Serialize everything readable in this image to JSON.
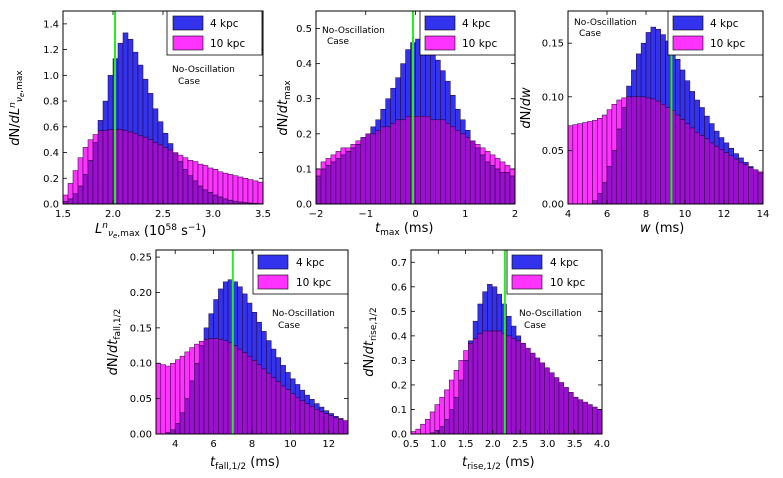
{
  "colors": {
    "kpc4": "#3333ee",
    "kpc10": "#ff33ff",
    "overlap": "#9911cc",
    "marker": "#22ee22"
  },
  "chart_data": [
    {
      "type": "bar",
      "id": "lmax",
      "title": "",
      "xlabel": "L^n_{ν_e,max} (10^58 s^-1)",
      "ylabel": "dN/dL^n_{ν_e,max}",
      "xlim": [
        1.5,
        3.5
      ],
      "ylim": [
        0,
        1.5
      ],
      "xticks": [
        "1.5",
        "2.0",
        "2.5",
        "3.0",
        "3.5"
      ],
      "xtick_values": [
        1.5,
        2.0,
        2.5,
        3.0,
        3.5
      ],
      "yticks": [
        "0.0",
        "0.2",
        "0.4",
        "0.6",
        "0.8",
        "1.0",
        "1.2",
        "1.4"
      ],
      "ytick_values": [
        0.0,
        0.2,
        0.4,
        0.6,
        0.8,
        1.0,
        1.2,
        1.4
      ],
      "marker_x": 2.02,
      "annotation": [
        "No-Oscillation",
        "Case"
      ],
      "legend": [
        "4 kpc",
        "10 kpc"
      ],
      "bin_start": 1.5,
      "bin_width": 0.05,
      "series": [
        {
          "name": "4 kpc",
          "values": [
            0.02,
            0.04,
            0.08,
            0.14,
            0.23,
            0.34,
            0.48,
            0.65,
            0.8,
            1.0,
            1.13,
            1.25,
            1.33,
            1.28,
            1.18,
            1.08,
            0.97,
            0.86,
            0.74,
            0.64,
            0.55,
            0.47,
            0.39,
            0.33,
            0.27,
            0.22,
            0.18,
            0.14,
            0.11,
            0.09,
            0.07,
            0.055,
            0.04,
            0.03,
            0.022,
            0.016,
            0.012,
            0.008,
            0.005,
            0.003
          ]
        },
        {
          "name": "10 kpc",
          "values": [
            0.07,
            0.16,
            0.26,
            0.36,
            0.44,
            0.5,
            0.54,
            0.57,
            0.57,
            0.58,
            0.58,
            0.58,
            0.57,
            0.56,
            0.55,
            0.53,
            0.52,
            0.5,
            0.48,
            0.46,
            0.44,
            0.42,
            0.4,
            0.38,
            0.36,
            0.34,
            0.33,
            0.31,
            0.3,
            0.28,
            0.27,
            0.25,
            0.24,
            0.23,
            0.22,
            0.21,
            0.2,
            0.19,
            0.18,
            0.17
          ]
        }
      ]
    },
    {
      "type": "bar",
      "id": "tmax",
      "title": "",
      "xlabel": "t_max (ms)",
      "ylabel": "dN/dt_max",
      "xlim": [
        -2,
        2
      ],
      "ylim": [
        0,
        0.55
      ],
      "xticks": [
        "−2",
        "−1",
        "0",
        "1",
        "2"
      ],
      "xtick_values": [
        -2,
        -1,
        0,
        1,
        2
      ],
      "yticks": [
        "0.0",
        "0.1",
        "0.2",
        "0.3",
        "0.4",
        "0.5"
      ],
      "ytick_values": [
        0.0,
        0.1,
        0.2,
        0.3,
        0.4,
        0.5
      ],
      "marker_x": -0.05,
      "annotation": [
        "No-Oscillation",
        "Case"
      ],
      "legend": [
        "4 kpc",
        "10 kpc"
      ],
      "bin_start": -2,
      "bin_width": 0.1,
      "series": [
        {
          "name": "4 kpc",
          "values": [
            0.08,
            0.1,
            0.11,
            0.12,
            0.13,
            0.14,
            0.15,
            0.16,
            0.17,
            0.19,
            0.2,
            0.22,
            0.24,
            0.27,
            0.3,
            0.33,
            0.36,
            0.4,
            0.44,
            0.46,
            0.47,
            0.47,
            0.46,
            0.44,
            0.41,
            0.38,
            0.35,
            0.31,
            0.27,
            0.24,
            0.21,
            0.18,
            0.16,
            0.14,
            0.12,
            0.11,
            0.1,
            0.09,
            0.09,
            0.08
          ]
        },
        {
          "name": "10 kpc",
          "values": [
            0.1,
            0.12,
            0.13,
            0.14,
            0.15,
            0.16,
            0.16,
            0.17,
            0.18,
            0.19,
            0.2,
            0.2,
            0.21,
            0.22,
            0.22,
            0.23,
            0.24,
            0.24,
            0.25,
            0.25,
            0.25,
            0.25,
            0.25,
            0.24,
            0.24,
            0.24,
            0.23,
            0.22,
            0.21,
            0.2,
            0.19,
            0.18,
            0.17,
            0.16,
            0.15,
            0.14,
            0.13,
            0.12,
            0.11,
            0.1
          ]
        }
      ]
    },
    {
      "type": "bar",
      "id": "w",
      "title": "",
      "xlabel": "w (ms)",
      "ylabel": "dN/dw",
      "xlim": [
        4,
        14
      ],
      "ylim": [
        0,
        0.18
      ],
      "xticks": [
        "4",
        "6",
        "8",
        "10",
        "12",
        "14"
      ],
      "xtick_values": [
        4,
        6,
        8,
        10,
        12,
        14
      ],
      "yticks": [
        "0.00",
        "0.05",
        "0.10",
        "0.15"
      ],
      "ytick_values": [
        0.0,
        0.05,
        0.1,
        0.15
      ],
      "marker_x": 9.3,
      "annotation": [
        "No-Oscillation",
        "Case"
      ],
      "legend": [
        "4 kpc",
        "10 kpc"
      ],
      "bin_start": 4,
      "bin_width": 0.25,
      "series": [
        {
          "name": "4 kpc",
          "values": [
            0.0,
            0.0,
            0.0,
            0.0,
            0.0,
            0.003,
            0.01,
            0.02,
            0.035,
            0.05,
            0.07,
            0.09,
            0.11,
            0.125,
            0.14,
            0.15,
            0.16,
            0.165,
            0.163,
            0.158,
            0.152,
            0.145,
            0.135,
            0.125,
            0.115,
            0.105,
            0.097,
            0.09,
            0.082,
            0.075,
            0.068,
            0.062,
            0.057,
            0.052,
            0.047,
            0.043,
            0.039,
            0.035,
            0.032,
            0.029
          ]
        },
        {
          "name": "10 kpc",
          "values": [
            0.073,
            0.074,
            0.075,
            0.076,
            0.077,
            0.078,
            0.08,
            0.083,
            0.088,
            0.093,
            0.097,
            0.099,
            0.1,
            0.1,
            0.1,
            0.1,
            0.099,
            0.098,
            0.096,
            0.093,
            0.09,
            0.087,
            0.083,
            0.079,
            0.075,
            0.071,
            0.067,
            0.064,
            0.061,
            0.057,
            0.054,
            0.051,
            0.048,
            0.045,
            0.042,
            0.039,
            0.037,
            0.034,
            0.032,
            0.03
          ]
        }
      ]
    },
    {
      "type": "bar",
      "id": "tfall",
      "title": "",
      "xlabel": "t_fall,1/2 (ms)",
      "ylabel": "dN/dt_fall,1/2",
      "xlim": [
        3,
        13
      ],
      "ylim": [
        0,
        0.26
      ],
      "xticks": [
        "4",
        "6",
        "8",
        "10",
        "12"
      ],
      "xtick_values": [
        4,
        6,
        8,
        10,
        12
      ],
      "yticks": [
        "0.00",
        "0.05",
        "0.10",
        "0.15",
        "0.20",
        "0.25"
      ],
      "ytick_values": [
        0.0,
        0.05,
        0.1,
        0.15,
        0.2,
        0.25
      ],
      "marker_x": 7.0,
      "annotation": [
        "No-Oscillation",
        "Case"
      ],
      "legend": [
        "4 kpc",
        "10 kpc"
      ],
      "bin_start": 3,
      "bin_width": 0.25,
      "series": [
        {
          "name": "4 kpc",
          "values": [
            0.0,
            0.0,
            0.002,
            0.006,
            0.015,
            0.03,
            0.05,
            0.075,
            0.1,
            0.125,
            0.15,
            0.17,
            0.19,
            0.205,
            0.215,
            0.218,
            0.215,
            0.208,
            0.198,
            0.185,
            0.172,
            0.158,
            0.145,
            0.132,
            0.12,
            0.108,
            0.097,
            0.087,
            0.078,
            0.07,
            0.062,
            0.055,
            0.049,
            0.043,
            0.038,
            0.033,
            0.029,
            0.025,
            0.022,
            0.019
          ]
        },
        {
          "name": "10 kpc",
          "values": [
            0.1,
            0.098,
            0.096,
            0.1,
            0.105,
            0.11,
            0.116,
            0.122,
            0.127,
            0.131,
            0.134,
            0.135,
            0.135,
            0.134,
            0.132,
            0.129,
            0.125,
            0.12,
            0.115,
            0.11,
            0.104,
            0.098,
            0.092,
            0.086,
            0.08,
            0.074,
            0.068,
            0.063,
            0.057,
            0.052,
            0.047,
            0.043,
            0.039,
            0.035,
            0.032,
            0.029,
            0.026,
            0.023,
            0.021,
            0.019
          ]
        }
      ]
    },
    {
      "type": "bar",
      "id": "trise",
      "title": "",
      "xlabel": "t_rise,1/2 (ms)",
      "ylabel": "dN/dt_rise,1/2",
      "xlim": [
        0.5,
        4.0
      ],
      "ylim": [
        0,
        0.75
      ],
      "xticks": [
        "0.5",
        "1.0",
        "1.5",
        "2.0",
        "2.5",
        "3.0",
        "3.5",
        "4.0"
      ],
      "xtick_values": [
        0.5,
        1.0,
        1.5,
        2.0,
        2.5,
        3.0,
        3.5,
        4.0
      ],
      "yticks": [
        "0.0",
        "0.1",
        "0.2",
        "0.3",
        "0.4",
        "0.5",
        "0.6",
        "0.7"
      ],
      "ytick_values": [
        0.0,
        0.1,
        0.2,
        0.3,
        0.4,
        0.5,
        0.6,
        0.7
      ],
      "marker_x": 2.22,
      "annotation": [
        "No-Oscillation",
        "Case"
      ],
      "legend": [
        "4 kpc",
        "10 kpc"
      ],
      "bin_start": 0.5,
      "bin_width": 0.0875,
      "series": [
        {
          "name": "4 kpc",
          "values": [
            0.0,
            0.0,
            0.0,
            0.0,
            0.005,
            0.015,
            0.03,
            0.06,
            0.1,
            0.15,
            0.22,
            0.3,
            0.38,
            0.46,
            0.53,
            0.58,
            0.61,
            0.6,
            0.57,
            0.53,
            0.48,
            0.44,
            0.4,
            0.37,
            0.35,
            0.33,
            0.31,
            0.29,
            0.27,
            0.25,
            0.23,
            0.21,
            0.19,
            0.17,
            0.15,
            0.14,
            0.13,
            0.12,
            0.11,
            0.1
          ]
        },
        {
          "name": "10 kpc",
          "values": [
            0.01,
            0.02,
            0.04,
            0.06,
            0.09,
            0.12,
            0.15,
            0.18,
            0.22,
            0.26,
            0.3,
            0.34,
            0.37,
            0.39,
            0.41,
            0.42,
            0.42,
            0.42,
            0.42,
            0.41,
            0.4,
            0.39,
            0.38,
            0.37,
            0.35,
            0.33,
            0.31,
            0.29,
            0.27,
            0.25,
            0.23,
            0.21,
            0.19,
            0.17,
            0.15,
            0.14,
            0.13,
            0.12,
            0.11,
            0.1
          ]
        }
      ]
    }
  ]
}
